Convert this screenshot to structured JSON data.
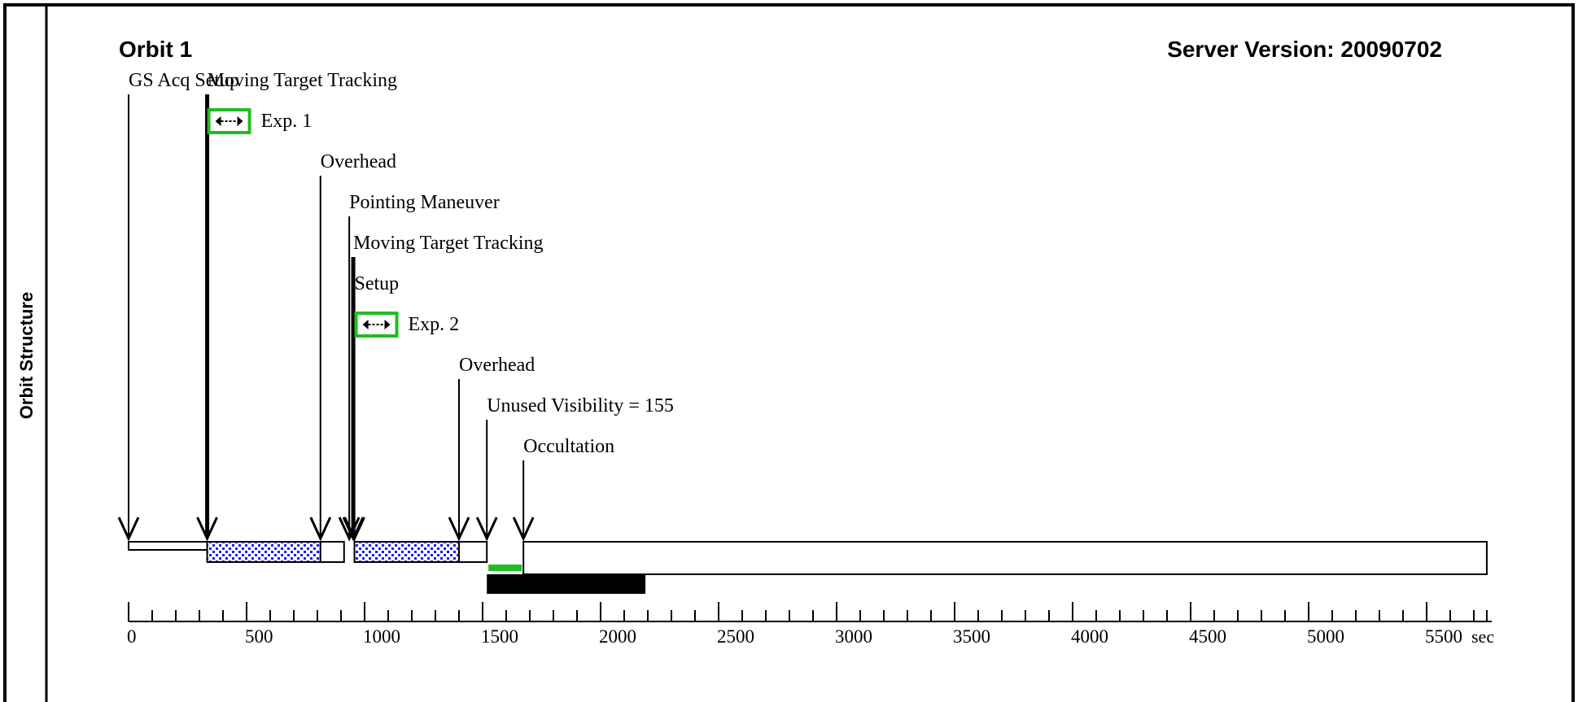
{
  "side_label": "Orbit Structure",
  "title": "Orbit 1",
  "server_version": "Server Version: 20090702",
  "time_unit": "sec",
  "colors": {
    "exposure_fill": "#1a1aff",
    "exposure_box": "#22bb22",
    "unused_visibility_bar": "#22bb22",
    "occultation_bar": "#000000"
  },
  "events": [
    {
      "label": "GS Acq Setup",
      "time": 0
    },
    {
      "label": "Moving Target Tracking",
      "time": 333
    },
    {
      "label": "Overhead",
      "time": 813
    },
    {
      "label": "Pointing Maneuver",
      "time": 935
    },
    {
      "label": "Moving Target Tracking",
      "time": 952
    },
    {
      "label": "Setup",
      "time": 957
    },
    {
      "label": "Overhead",
      "time": 1400
    },
    {
      "label": "Unused Visibility = 155",
      "time": 1518
    },
    {
      "label": "Occultation",
      "time": 1673
    }
  ],
  "exposures": [
    {
      "label": "Exp. 1",
      "start": 333,
      "end": 813,
      "marker_time": 333
    },
    {
      "label": "Exp. 2",
      "start": 957,
      "end": 1400,
      "marker_time": 957
    }
  ],
  "segments": [
    {
      "name": "gs-acq-setup",
      "start": 0,
      "end": 333,
      "kind": "thin"
    },
    {
      "name": "exposure-1",
      "start": 333,
      "end": 813,
      "kind": "exposure"
    },
    {
      "name": "overhead-1",
      "start": 813,
      "end": 913,
      "kind": "box"
    },
    {
      "name": "exposure-2",
      "start": 957,
      "end": 1400,
      "kind": "exposure"
    },
    {
      "name": "overhead-2",
      "start": 1400,
      "end": 1518,
      "kind": "box"
    },
    {
      "name": "occultation",
      "start": 1673,
      "end": 5755,
      "kind": "box"
    }
  ],
  "unused_visibility": {
    "start": 1518,
    "end": 1673
  },
  "occultation_bar": {
    "start": 1518,
    "end": 2190
  },
  "axis": {
    "min": 0,
    "max": 5755,
    "major_step": 500,
    "minor_step": 100,
    "tick_labels": [
      "0",
      "500",
      "1000",
      "1500",
      "2000",
      "2500",
      "3000",
      "3500",
      "4000",
      "4500",
      "5000",
      "5500"
    ]
  }
}
